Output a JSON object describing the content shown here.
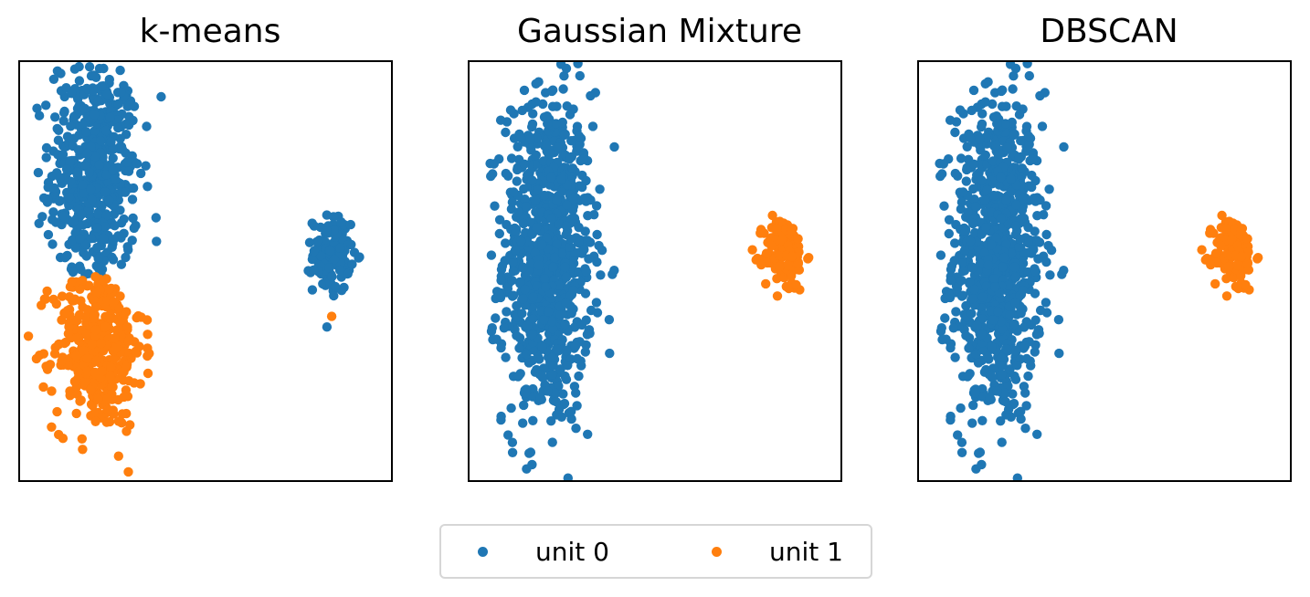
{
  "colors": {
    "unit0": "#1f77b4",
    "unit1": "#ff7f0e"
  },
  "legend": {
    "items": [
      {
        "label": "unit 0",
        "color": "#1f77b4"
      },
      {
        "label": "unit 1",
        "color": "#ff7f0e"
      }
    ]
  },
  "chart_data": [
    {
      "type": "scatter",
      "title": "k-means",
      "xlim": [
        0,
        10
      ],
      "ylim": [
        0,
        10
      ],
      "ticks": false,
      "series": [
        {
          "name": "unit 0",
          "color": "#1f77b4",
          "regions": [
            {
              "cx": 2.0,
              "cy": 7.3,
              "sx": 0.6,
              "sy": 1.4,
              "n": 520,
              "ymin": 4.9
            },
            {
              "cx": 8.4,
              "cy": 5.4,
              "sx": 0.25,
              "sy": 0.45,
              "n": 130
            }
          ]
        },
        {
          "name": "unit 1",
          "color": "#ff7f0e",
          "regions": [
            {
              "cx": 2.1,
              "cy": 3.2,
              "sx": 0.6,
              "sy": 1.0,
              "n": 400,
              "ymax": 4.9
            },
            {
              "cx": 8.4,
              "cy": 3.9,
              "sx": 0.01,
              "sy": 0.01,
              "n": 1
            }
          ]
        }
      ]
    },
    {
      "type": "scatter",
      "title": "Gaussian Mixture",
      "xlim": [
        0,
        10
      ],
      "ylim": [
        0,
        10
      ],
      "ticks": false,
      "series": [
        {
          "name": "unit 0",
          "color": "#1f77b4",
          "regions": [
            {
              "cx": 2.1,
              "cy": 5.3,
              "sx": 0.6,
              "sy": 2.0,
              "n": 900
            }
          ]
        },
        {
          "name": "unit 1",
          "color": "#ff7f0e",
          "regions": [
            {
              "cx": 8.5,
              "cy": 5.4,
              "sx": 0.28,
              "sy": 0.45,
              "n": 130
            }
          ]
        }
      ]
    },
    {
      "type": "scatter",
      "title": "DBSCAN",
      "xlim": [
        0,
        10
      ],
      "ylim": [
        0,
        10
      ],
      "ticks": false,
      "series": [
        {
          "name": "unit 0",
          "color": "#1f77b4",
          "regions": [
            {
              "cx": 2.1,
              "cy": 5.3,
              "sx": 0.6,
              "sy": 2.0,
              "n": 900
            }
          ]
        },
        {
          "name": "unit 1",
          "color": "#ff7f0e",
          "regions": [
            {
              "cx": 8.5,
              "cy": 5.4,
              "sx": 0.28,
              "sy": 0.45,
              "n": 130
            }
          ]
        }
      ]
    }
  ]
}
